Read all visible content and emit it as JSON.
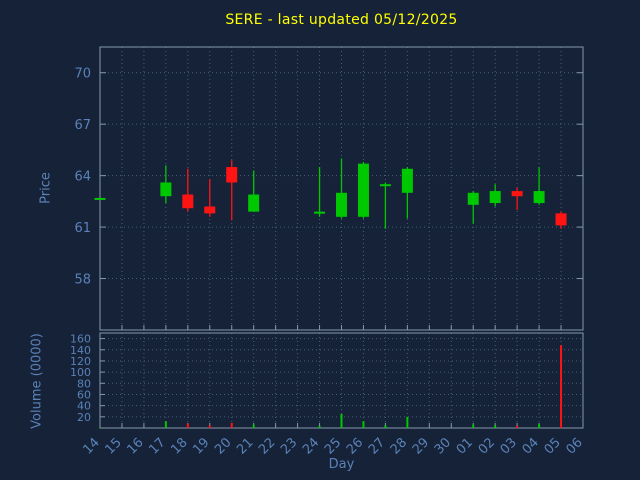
{
  "header": {
    "title": "SERE - last updated 05/12/2025"
  },
  "chart_data": {
    "type": "candlestick",
    "title": "SERE - last updated 05/12/2025",
    "xlabel": "Day",
    "price_axis_label": "Price",
    "volume_axis_label": "Volume (0000)",
    "grid": "on",
    "legend": "none",
    "categories": [
      "14",
      "15",
      "16",
      "17",
      "18",
      "19",
      "20",
      "21",
      "22",
      "23",
      "24",
      "25",
      "26",
      "27",
      "28",
      "29",
      "30",
      "01",
      "02",
      "03",
      "04",
      "05",
      "06"
    ],
    "price_ticks": [
      58,
      61,
      64,
      67,
      70
    ],
    "price_range": [
      55.0,
      71.5
    ],
    "volume_ticks": [
      20,
      40,
      60,
      80,
      100,
      120,
      140,
      160
    ],
    "volume_range": [
      0,
      170
    ],
    "colors": {
      "background": "#152238",
      "title": "#ffff00",
      "axis_text": "#5b82b8",
      "grid": "#46607c",
      "border": "#8599ad",
      "up": "#00c800",
      "down": "#ff1414"
    },
    "candles": [
      {
        "day": "14",
        "open": 62.7,
        "high": 62.7,
        "low": 62.7,
        "close": 62.7
      },
      {
        "day": "17",
        "open": 62.8,
        "high": 64.6,
        "low": 62.4,
        "close": 63.6
      },
      {
        "day": "18",
        "open": 62.9,
        "high": 64.4,
        "low": 61.9,
        "close": 62.1
      },
      {
        "day": "19",
        "open": 62.2,
        "high": 63.8,
        "low": 61.6,
        "close": 61.8
      },
      {
        "day": "20",
        "open": 64.5,
        "high": 64.9,
        "low": 61.4,
        "close": 63.6
      },
      {
        "day": "21",
        "open": 61.9,
        "high": 64.3,
        "low": 61.9,
        "close": 62.9
      },
      {
        "day": "24",
        "open": 61.8,
        "high": 64.5,
        "low": 61.6,
        "close": 61.9
      },
      {
        "day": "25",
        "open": 61.6,
        "high": 65.0,
        "low": 61.5,
        "close": 63.0
      },
      {
        "day": "26",
        "open": 61.6,
        "high": 64.8,
        "low": 61.5,
        "close": 64.7
      },
      {
        "day": "27",
        "open": 63.4,
        "high": 63.6,
        "low": 60.9,
        "close": 63.5
      },
      {
        "day": "28",
        "open": 63.0,
        "high": 64.5,
        "low": 61.5,
        "close": 64.4
      },
      {
        "day": "01",
        "open": 62.3,
        "high": 63.1,
        "low": 61.2,
        "close": 63.0
      },
      {
        "day": "02",
        "open": 62.4,
        "high": 63.5,
        "low": 62.2,
        "close": 63.1
      },
      {
        "day": "03",
        "open": 63.1,
        "high": 63.3,
        "low": 62.0,
        "close": 62.8
      },
      {
        "day": "04",
        "open": 62.4,
        "high": 64.5,
        "low": 62.3,
        "close": 63.1
      },
      {
        "day": "05",
        "open": 61.8,
        "high": 61.9,
        "low": 60.9,
        "close": 61.1
      }
    ],
    "volumes": [
      {
        "day": "14",
        "value": 1
      },
      {
        "day": "17",
        "value": 12
      },
      {
        "day": "18",
        "value": 8
      },
      {
        "day": "19",
        "value": 5
      },
      {
        "day": "20",
        "value": 9
      },
      {
        "day": "21",
        "value": 6
      },
      {
        "day": "24",
        "value": 4
      },
      {
        "day": "25",
        "value": 25
      },
      {
        "day": "26",
        "value": 12
      },
      {
        "day": "27",
        "value": 5
      },
      {
        "day": "28",
        "value": 20
      },
      {
        "day": "01",
        "value": 6
      },
      {
        "day": "02",
        "value": 5
      },
      {
        "day": "03",
        "value": 4
      },
      {
        "day": "04",
        "value": 7
      },
      {
        "day": "05",
        "value": 148
      }
    ]
  }
}
